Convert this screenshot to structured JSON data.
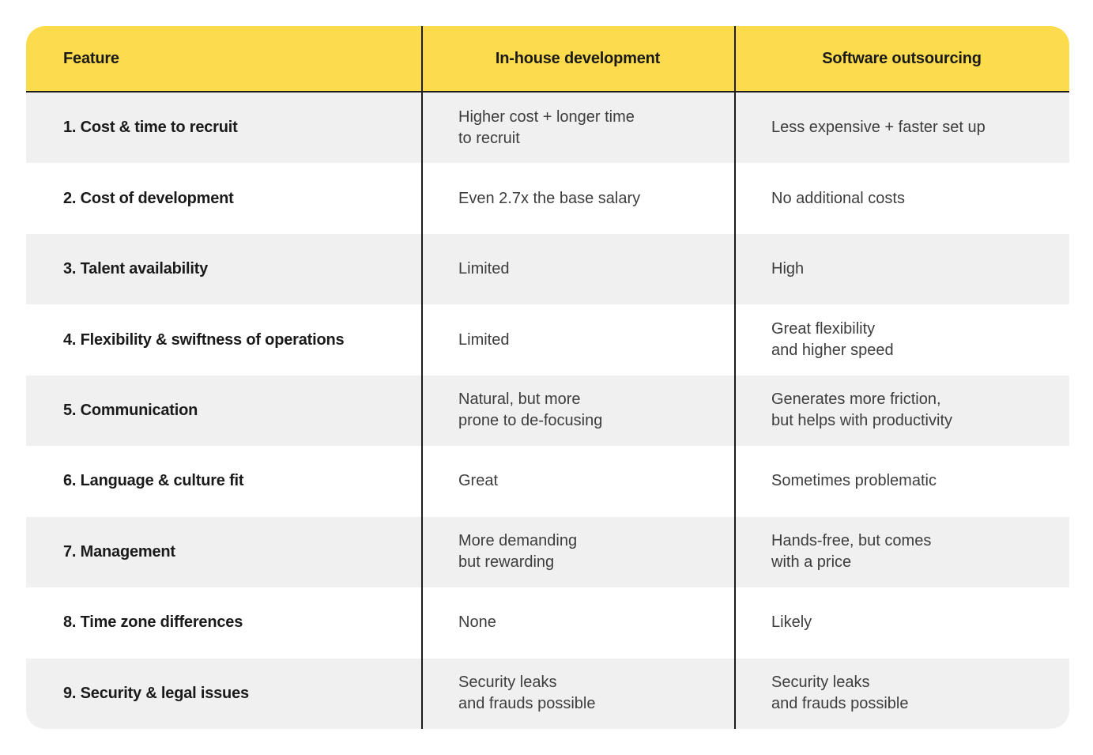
{
  "colors": {
    "header_bg": "#FCDB4D",
    "row_alt_bg": "#F0F0F0",
    "row_bg": "#FFFFFF",
    "divider": "#1C1C1C",
    "feature_text": "#1A1A1A",
    "cell_text": "#3D3D3D"
  },
  "table": {
    "headers": {
      "feature": "Feature",
      "inhouse": "In-house development",
      "outsourcing": "Software outsourcing"
    },
    "rows": [
      {
        "feature": "1. Cost & time to recruit",
        "inhouse": "Higher cost + longer time\nto recruit",
        "outsourcing": "Less expensive + faster set up"
      },
      {
        "feature": "2. Cost of development",
        "inhouse": "Even 2.7x the base salary",
        "outsourcing": "No additional costs"
      },
      {
        "feature": "3. Talent availability",
        "inhouse": "Limited",
        "outsourcing": "High"
      },
      {
        "feature": "4. Flexibility & swiftness of operations",
        "inhouse": "Limited",
        "outsourcing": "Great flexibility\nand higher speed"
      },
      {
        "feature": "5. Communication",
        "inhouse": "Natural, but more\nprone to de-focusing",
        "outsourcing": "Generates more friction,\nbut helps with productivity"
      },
      {
        "feature": "6. Language & culture fit",
        "inhouse": "Great",
        "outsourcing": "Sometimes problematic"
      },
      {
        "feature": "7. Management",
        "inhouse": "More demanding\nbut rewarding",
        "outsourcing": "Hands-free, but comes\nwith a price"
      },
      {
        "feature": "8. Time zone differences",
        "inhouse": "None",
        "outsourcing": "Likely"
      },
      {
        "feature": "9. Security & legal issues",
        "inhouse": "Security leaks\nand frauds possible",
        "outsourcing": "Security leaks\nand frauds possible"
      }
    ]
  }
}
